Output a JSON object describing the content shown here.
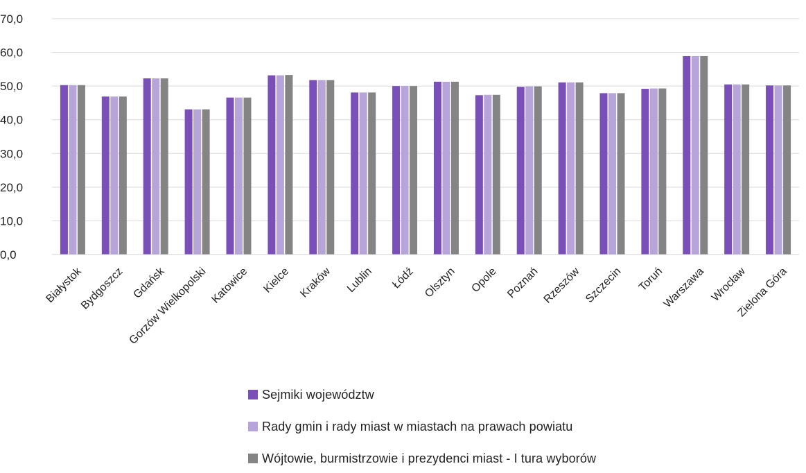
{
  "chart_data": {
    "type": "bar",
    "categories": [
      "Białystok",
      "Bydgoszcz",
      "Gdańsk",
      "Gorzów Wielkopolski",
      "Katowice",
      "Kielce",
      "Kraków",
      "Lublin",
      "Łódź",
      "Olsztyn",
      "Opole",
      "Poznań",
      "Rzeszów",
      "Szczecin",
      "Toruń",
      "Warszawa",
      "Wrocław",
      "Zielona Góra"
    ],
    "series": [
      {
        "name": "Sejmiki województw",
        "color": "#7a50b8",
        "values": [
          50.3,
          46.9,
          52.3,
          43.1,
          46.6,
          53.2,
          51.8,
          48.1,
          50.0,
          51.3,
          47.3,
          49.8,
          51.1,
          47.9,
          49.2,
          58.9,
          50.5,
          50.2
        ]
      },
      {
        "name": "Rady gmin i rady miast w miastach na prawach powiatu",
        "color": "#b7a4d9",
        "values": [
          50.3,
          46.9,
          52.3,
          43.1,
          46.6,
          53.2,
          51.8,
          48.1,
          50.0,
          51.3,
          47.4,
          49.9,
          51.1,
          47.9,
          49.3,
          58.9,
          50.5,
          50.2
        ]
      },
      {
        "name": "Wójtowie, burmistrzowie i prezydenci miast - I tura wyborów",
        "color": "#848484",
        "values": [
          50.3,
          46.9,
          52.3,
          43.1,
          46.6,
          53.3,
          51.8,
          48.1,
          50.0,
          51.3,
          47.4,
          49.9,
          51.1,
          47.9,
          49.3,
          58.9,
          50.5,
          50.2
        ]
      }
    ],
    "yticks": [
      "0,0",
      "10,0",
      "20,0",
      "30,0",
      "40,0",
      "50,0",
      "60,0",
      "70,0"
    ],
    "ylim": [
      0,
      70
    ],
    "grid": true,
    "legend_position": "bottom",
    "title": "",
    "xlabel": "",
    "ylabel": ""
  }
}
